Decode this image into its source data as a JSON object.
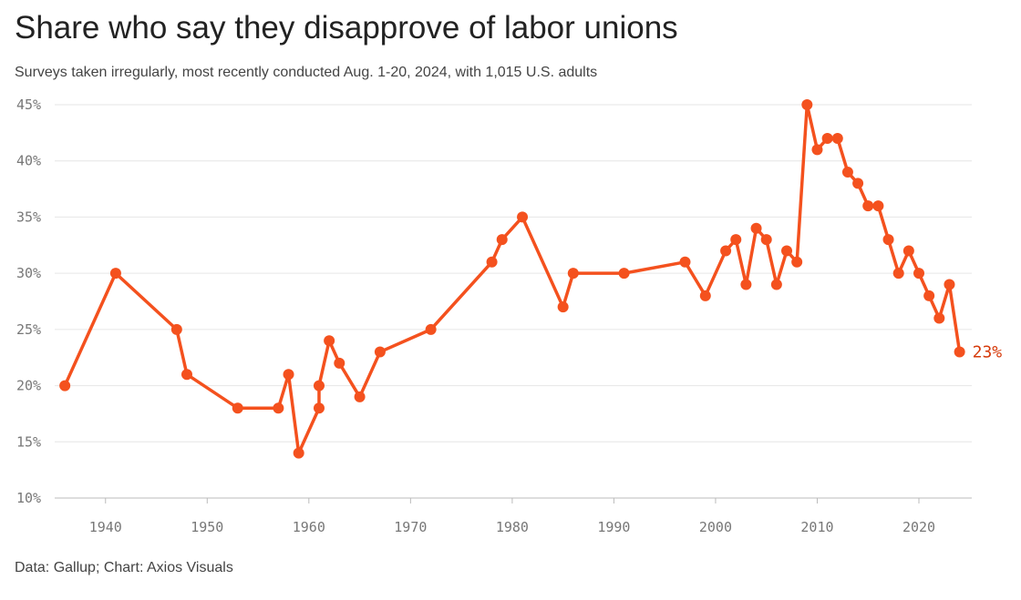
{
  "chart_data": {
    "type": "line",
    "title": "Share who say they disapprove of labor unions",
    "subtitle": "Surveys taken irregularly, most recently conducted Aug. 1-20, 2024, with 1,015 U.S. adults",
    "source": "Data: Gallup; Chart: Axios Visuals",
    "x": [
      1936,
      1941,
      1947,
      1948,
      1953,
      1957,
      1958,
      1959,
      1961,
      1961,
      1962,
      1963,
      1965,
      1967,
      1972,
      1978,
      1979,
      1981,
      1985,
      1986,
      1991,
      1997,
      1999,
      2001,
      2002,
      2003,
      2004,
      2005,
      2006,
      2007,
      2008,
      2009,
      2010,
      2011,
      2012,
      2013,
      2014,
      2015,
      2016,
      2017,
      2018,
      2019,
      2020,
      2021,
      2022,
      2023,
      2024
    ],
    "values": [
      20,
      30,
      25,
      21,
      18,
      18,
      21,
      14,
      18,
      20,
      24,
      22,
      19,
      23,
      25,
      31,
      33,
      35,
      27,
      30,
      30,
      31,
      28,
      32,
      33,
      29,
      34,
      33,
      29,
      32,
      31,
      45,
      41,
      42,
      42,
      39,
      38,
      36,
      36,
      33,
      30,
      32,
      30,
      28,
      26,
      29,
      23
    ],
    "value_labels": [
      null,
      null,
      null,
      null,
      null,
      null,
      null,
      null,
      null,
      null,
      null,
      null,
      null,
      null,
      null,
      null,
      null,
      null,
      null,
      null,
      null,
      null,
      null,
      null,
      null,
      null,
      null,
      null,
      null,
      null,
      null,
      null,
      null,
      null,
      null,
      null,
      null,
      null,
      null,
      null,
      null,
      null,
      null,
      null,
      null,
      null,
      "23%"
    ],
    "color": "#f4511e",
    "xlim": [
      1935,
      2025.2
    ],
    "xticks": [
      1940,
      1950,
      1960,
      1970,
      1980,
      1990,
      2000,
      2010,
      2020
    ],
    "ylim": [
      10,
      45
    ],
    "yticks": [
      {
        "value": 10,
        "label": "10%"
      },
      {
        "value": 15,
        "label": "15%"
      },
      {
        "value": 20,
        "label": "20%"
      },
      {
        "value": 25,
        "label": "25%"
      },
      {
        "value": 30,
        "label": "30%"
      },
      {
        "value": 35,
        "label": "35%"
      },
      {
        "value": 40,
        "label": "40%"
      },
      {
        "value": 45,
        "label": "45%"
      }
    ],
    "grid": true
  }
}
